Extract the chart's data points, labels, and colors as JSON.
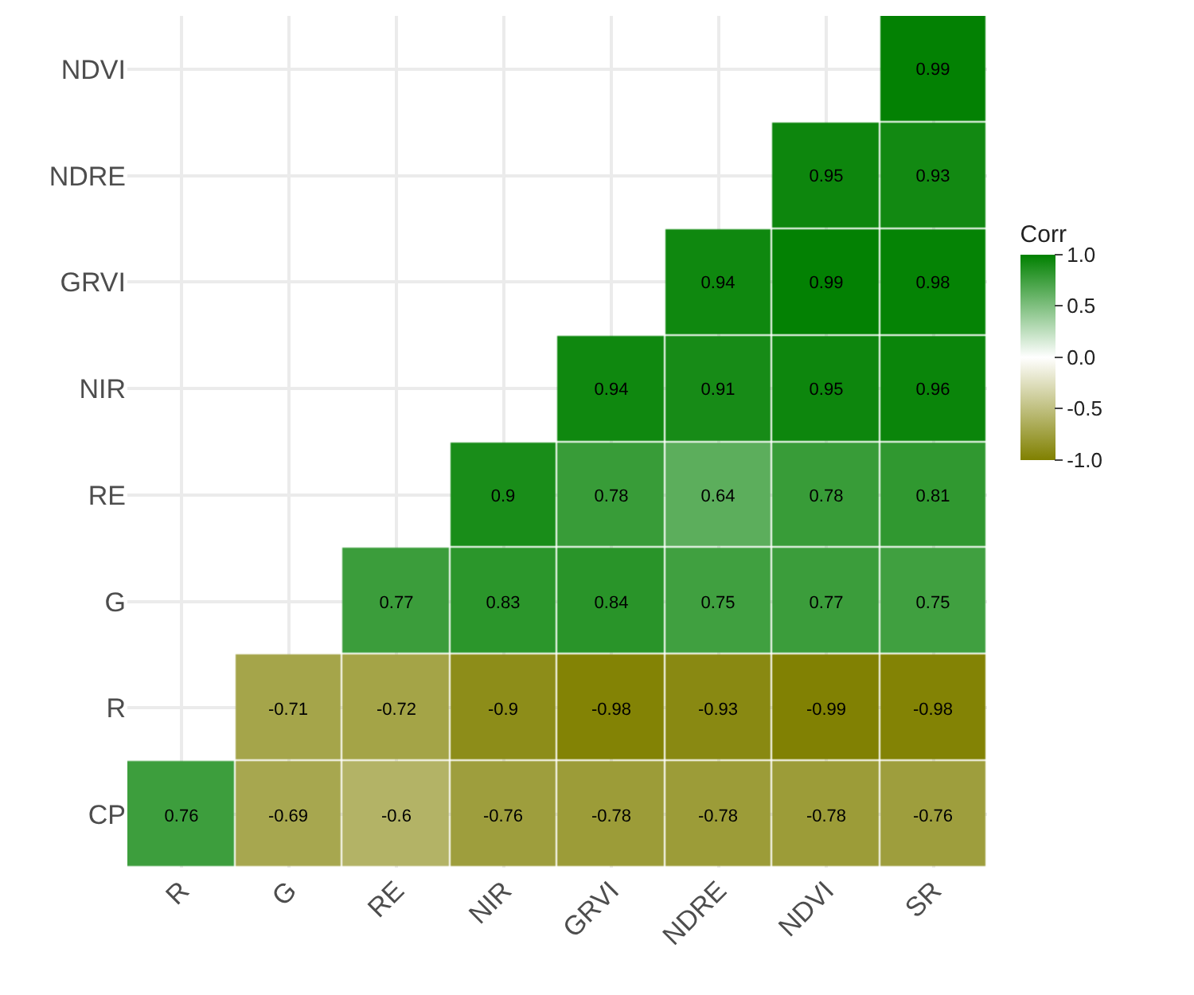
{
  "chart_data": {
    "type": "heatmap",
    "clabel": "Corr",
    "categories": [
      "R",
      "G",
      "RE",
      "NIR",
      "GRVI",
      "NDRE",
      "NDVI",
      "SR"
    ],
    "y_categories": [
      "NDVI",
      "NDRE",
      "GRVI",
      "NIR",
      "RE",
      "G",
      "R",
      "CP"
    ],
    "cells": [
      [
        null,
        null,
        null,
        null,
        null,
        null,
        null,
        0.99
      ],
      [
        null,
        null,
        null,
        null,
        null,
        null,
        0.95,
        0.93
      ],
      [
        null,
        null,
        null,
        null,
        null,
        0.94,
        0.99,
        0.98
      ],
      [
        null,
        null,
        null,
        null,
        0.94,
        0.91,
        0.95,
        0.96
      ],
      [
        null,
        null,
        null,
        0.9,
        0.78,
        0.64,
        0.78,
        0.81
      ],
      [
        null,
        null,
        0.77,
        0.83,
        0.84,
        0.75,
        0.77,
        0.75
      ],
      [
        null,
        -0.71,
        -0.72,
        -0.9,
        -0.98,
        -0.93,
        -0.99,
        -0.98
      ],
      [
        0.76,
        -0.69,
        -0.6,
        -0.76,
        -0.78,
        -0.78,
        -0.78,
        -0.76
      ]
    ],
    "colors": [
      "#808000",
      "#ffffff",
      "#008000"
    ],
    "clim": [
      -1,
      1
    ],
    "cticks": [
      {
        "value": -1,
        "label": "-1.0"
      },
      {
        "value": -0.5,
        "label": "-0.5"
      },
      {
        "value": 0,
        "label": "0.0"
      },
      {
        "value": 0.5,
        "label": "0.5"
      },
      {
        "value": 1,
        "label": "1.0"
      }
    ],
    "data_labels": true,
    "grid": true
  }
}
